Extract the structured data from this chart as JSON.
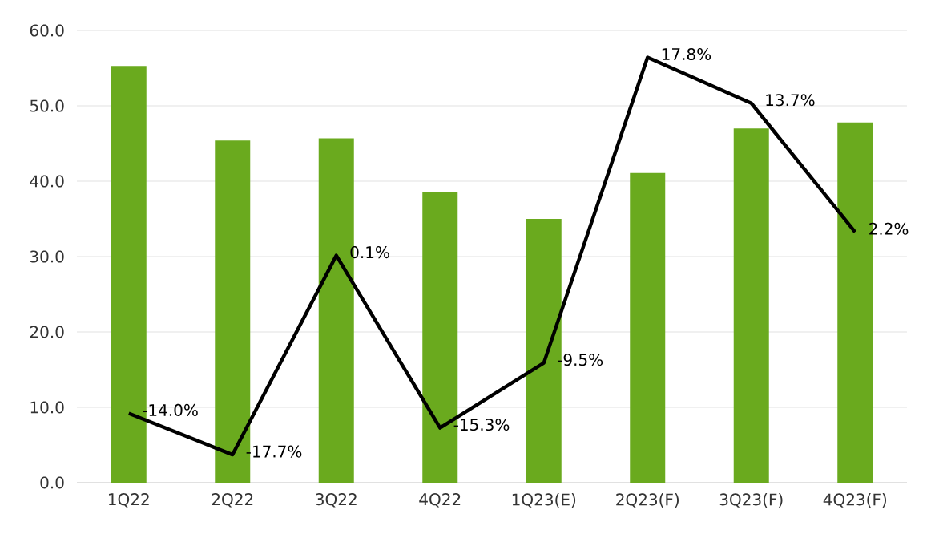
{
  "chart_data": {
    "type": "bar",
    "categories": [
      "1Q22",
      "2Q22",
      "3Q22",
      "4Q22",
      "1Q23(E)",
      "2Q23(F)",
      "3Q23(F)",
      "4Q23(F)"
    ],
    "series": [
      {
        "color": "#6aaa1e",
        "values": [
          55.3,
          45.4,
          45.7,
          38.6,
          35.0,
          41.1,
          47.0,
          47.8
        ]
      },
      {
        "type": "line",
        "axis": "y2",
        "color": "#000000",
        "values": [
          -14.0,
          -17.7,
          0.1,
          -15.3,
          -9.5,
          17.8,
          13.7,
          2.2
        ],
        "value_labels": [
          "-14.0%",
          "-17.7%",
          "0.1%",
          "-15.3%",
          "-9.5%",
          "17.8%",
          "13.7%",
          "2.2%"
        ]
      }
    ],
    "ylim": [
      0,
      60
    ],
    "yticks": [
      {
        "value": 0,
        "label": "0.0"
      },
      {
        "value": 10,
        "label": "10.0"
      },
      {
        "value": 20,
        "label": "20.0"
      },
      {
        "value": 30,
        "label": "30.0"
      },
      {
        "value": 40,
        "label": "40.0"
      },
      {
        "value": 50,
        "label": "50.0"
      },
      {
        "value": 60,
        "label": "60.0"
      }
    ],
    "y2lim": [
      -20.2,
      20.2
    ],
    "grid": "y",
    "marker": "none",
    "line_style": "solid"
  }
}
